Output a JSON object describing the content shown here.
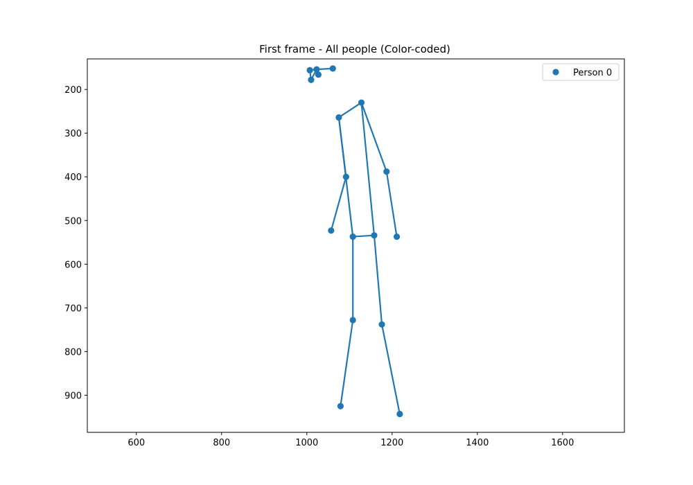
{
  "chart_data": {
    "type": "scatter",
    "title": "First frame - All people (Color-coded)",
    "xlabel": "",
    "ylabel": "",
    "xlim": [
      485,
      1745
    ],
    "ylim": [
      985,
      130
    ],
    "y_inverted": true,
    "x_ticks": [
      600,
      800,
      1000,
      1200,
      1400,
      1600
    ],
    "x_tick_labels": [
      "600",
      "800",
      "1000",
      "1200",
      "1400",
      "1600"
    ],
    "y_ticks": [
      200,
      300,
      400,
      500,
      600,
      700,
      800,
      900
    ],
    "y_tick_labels": [
      "200",
      "300",
      "400",
      "500",
      "600",
      "700",
      "800",
      "900"
    ],
    "grid": false,
    "legend": {
      "placement": "top-right",
      "entries": [
        "Person 0"
      ]
    },
    "series": [
      {
        "name": "Person 0",
        "color": "#1f77b4",
        "points": [
          [
            1128,
            230
          ],
          [
            1075,
            264
          ],
          [
            1092,
            400
          ],
          [
            1057,
            523
          ],
          [
            1187,
            388
          ],
          [
            1211,
            537
          ],
          [
            1108,
            537
          ],
          [
            1108,
            728
          ],
          [
            1079,
            925
          ],
          [
            1158,
            534
          ],
          [
            1176,
            738
          ],
          [
            1218,
            943
          ],
          [
            1023,
            154
          ],
          [
            1061,
            152
          ],
          [
            1007,
            156
          ],
          [
            1027,
            166
          ],
          [
            1010,
            178
          ]
        ],
        "links": [
          [
            0,
            1
          ],
          [
            1,
            2
          ],
          [
            2,
            3
          ],
          [
            0,
            4
          ],
          [
            4,
            5
          ],
          [
            0,
            9
          ],
          [
            1,
            6
          ],
          [
            6,
            9
          ],
          [
            6,
            7
          ],
          [
            7,
            8
          ],
          [
            9,
            10
          ],
          [
            10,
            11
          ],
          [
            12,
            13
          ],
          [
            12,
            14
          ],
          [
            12,
            15
          ],
          [
            14,
            16
          ],
          [
            16,
            12
          ]
        ]
      }
    ]
  }
}
